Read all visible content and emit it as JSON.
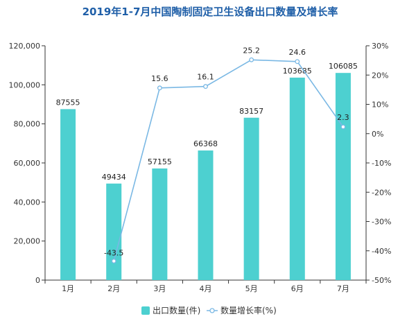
{
  "chart_data": {
    "type": "bar",
    "title": "2019年1-7月中国陶制固定卫生设备出口数量及增长率",
    "categories": [
      "1月",
      "2月",
      "3月",
      "4月",
      "5月",
      "6月",
      "7月"
    ],
    "series": [
      {
        "name": "出口数量(件)",
        "type": "bar",
        "axis": "left",
        "values": [
          87555,
          49434,
          57155,
          66368,
          83157,
          103685,
          106085
        ],
        "labels": [
          "87555",
          "49434",
          "57155",
          "66368",
          "83157",
          "103685",
          "106085"
        ]
      },
      {
        "name": "数量增长率(%)",
        "type": "line",
        "axis": "right",
        "values": [
          null,
          -43.5,
          15.6,
          16.1,
          25.2,
          24.6,
          2.3
        ],
        "labels": [
          "",
          "-43.5",
          "15.6",
          "16.1",
          "25.2",
          "24.6",
          "2.3"
        ]
      }
    ],
    "y_left": {
      "min": 0,
      "max": 120000,
      "ticks": [
        0,
        20000,
        40000,
        60000,
        80000,
        100000,
        120000
      ],
      "tick_labels": [
        "0",
        "20,000",
        "40,000",
        "60,000",
        "80,000",
        "100,000",
        "120,000"
      ]
    },
    "y_right": {
      "min": -50,
      "max": 30,
      "ticks": [
        -50,
        -40,
        -30,
        -20,
        -10,
        0,
        10,
        20,
        30
      ],
      "tick_labels": [
        "-50%",
        "-40%",
        "-30%",
        "-20%",
        "-10%",
        "0%",
        "10%",
        "20%",
        "30%"
      ]
    },
    "legend_position": "bottom",
    "grid": false,
    "colors": {
      "bar": "#4dd0d0",
      "line": "#7ab8e4",
      "title": "#1f5fa8",
      "axis": "#333333"
    }
  }
}
